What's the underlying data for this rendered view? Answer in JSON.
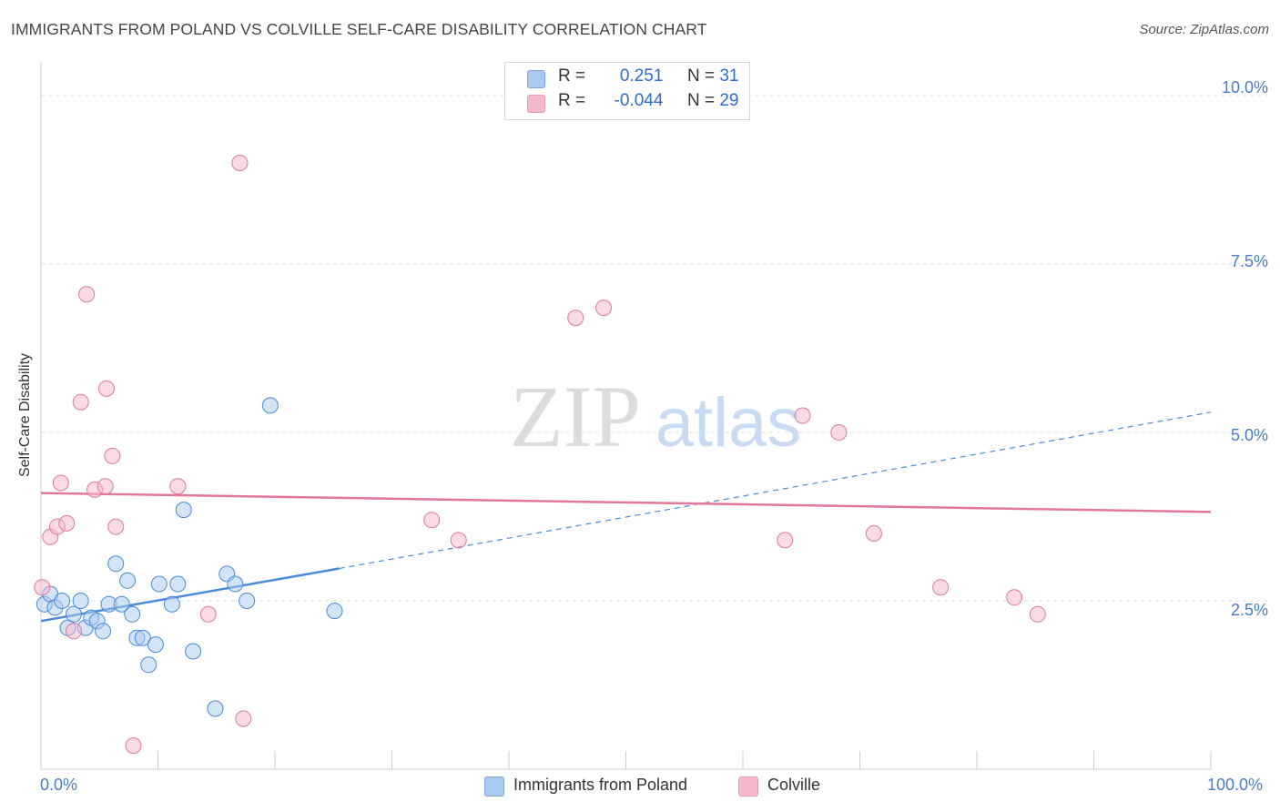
{
  "title": "IMMIGRANTS FROM POLAND VS COLVILLE SELF-CARE DISABILITY CORRELATION CHART",
  "source": "Source: ZipAtlas.com",
  "watermark": {
    "zip": "ZIP",
    "atlas": "atlas"
  },
  "stats": {
    "rows": [
      {
        "r_label": "R =",
        "r_value": "0.251",
        "n_label": "N =",
        "n_value": "31",
        "color": "#a9c9f0"
      },
      {
        "r_label": "R =",
        "r_value": "-0.044",
        "n_label": "N =",
        "n_value": "29",
        "color": "#f5b8cb"
      }
    ]
  },
  "legend": [
    {
      "label": "Immigrants from Poland",
      "color": "#a9c9f0"
    },
    {
      "label": "Colville",
      "color": "#f5b8cb"
    }
  ],
  "chart_data": {
    "type": "scatter",
    "ylabel": "Self-Care Disability",
    "xlim": [
      0,
      100
    ],
    "ylim": [
      0,
      10.5
    ],
    "x_tick_labels": [
      "0.0%",
      "100.0%"
    ],
    "y_ticks": [
      2.5,
      5.0,
      7.5,
      10.0
    ],
    "y_tick_labels": [
      "2.5%",
      "5.0%",
      "7.5%",
      "10.0%"
    ],
    "grid": true,
    "series": [
      {
        "name": "Immigrants from Poland",
        "color": "#a9c9f0",
        "stroke": "#4a8ad8",
        "points": [
          [
            0.3,
            2.45
          ],
          [
            0.8,
            2.6
          ],
          [
            1.2,
            2.4
          ],
          [
            1.8,
            2.5
          ],
          [
            2.3,
            2.1
          ],
          [
            2.8,
            2.3
          ],
          [
            3.4,
            2.5
          ],
          [
            3.8,
            2.1
          ],
          [
            4.3,
            2.25
          ],
          [
            4.8,
            2.2
          ],
          [
            5.3,
            2.05
          ],
          [
            5.8,
            2.45
          ],
          [
            6.4,
            3.05
          ],
          [
            6.9,
            2.45
          ],
          [
            7.4,
            2.8
          ],
          [
            7.8,
            2.3
          ],
          [
            8.2,
            1.95
          ],
          [
            8.7,
            1.95
          ],
          [
            9.2,
            1.55
          ],
          [
            9.8,
            1.85
          ],
          [
            10.1,
            2.75
          ],
          [
            11.2,
            2.45
          ],
          [
            11.7,
            2.75
          ],
          [
            12.2,
            3.85
          ],
          [
            13.0,
            1.75
          ],
          [
            14.9,
            0.9
          ],
          [
            15.9,
            2.9
          ],
          [
            16.6,
            2.75
          ],
          [
            17.6,
            2.5
          ],
          [
            19.6,
            5.4
          ],
          [
            25.1,
            2.35
          ]
        ],
        "trend": {
          "x0": 0,
          "y0": 2.2,
          "x1": 25.5,
          "y1": 2.98,
          "dash_to_x": 100,
          "dash_to_y": 5.3
        }
      },
      {
        "name": "Colville",
        "color": "#f5b8cb",
        "stroke": "#e0789c",
        "points": [
          [
            0.1,
            2.7
          ],
          [
            0.8,
            3.45
          ],
          [
            1.4,
            3.6
          ],
          [
            1.7,
            4.25
          ],
          [
            2.2,
            3.65
          ],
          [
            2.8,
            2.05
          ],
          [
            3.4,
            5.45
          ],
          [
            3.9,
            7.05
          ],
          [
            4.6,
            4.15
          ],
          [
            5.5,
            4.2
          ],
          [
            5.6,
            5.65
          ],
          [
            6.1,
            4.65
          ],
          [
            6.4,
            3.6
          ],
          [
            7.9,
            0.35
          ],
          [
            11.7,
            4.2
          ],
          [
            14.3,
            2.3
          ],
          [
            17.0,
            9.0
          ],
          [
            17.3,
            0.75
          ],
          [
            33.4,
            3.7
          ],
          [
            35.7,
            3.4
          ],
          [
            45.7,
            6.7
          ],
          [
            48.1,
            6.85
          ],
          [
            63.6,
            3.4
          ],
          [
            65.1,
            5.25
          ],
          [
            68.2,
            5.0
          ],
          [
            71.2,
            3.5
          ],
          [
            76.9,
            2.7
          ],
          [
            83.2,
            2.55
          ],
          [
            85.2,
            2.3
          ]
        ],
        "trend": {
          "x0": 0,
          "y0": 4.1,
          "x1": 100,
          "y1": 3.82
        }
      }
    ]
  }
}
